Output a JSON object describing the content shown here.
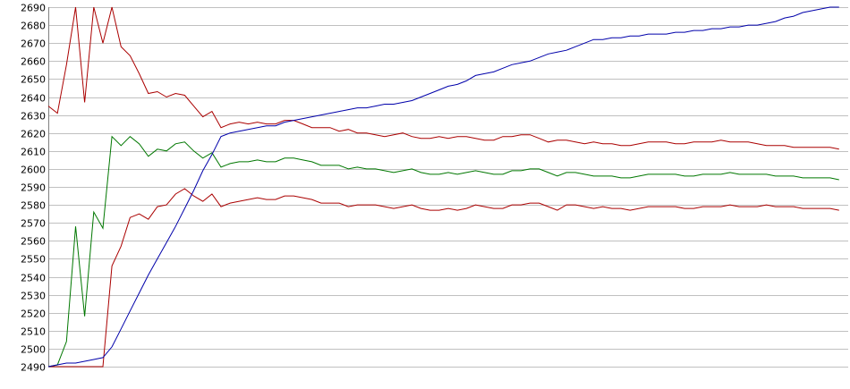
{
  "chart_data": {
    "type": "line",
    "title": "",
    "xlabel": "",
    "ylabel": "",
    "ylim": [
      2490,
      2690
    ],
    "xlim": [
      0,
      88
    ],
    "y_ticks": [
      2490,
      2500,
      2510,
      2520,
      2530,
      2540,
      2550,
      2560,
      2570,
      2580,
      2590,
      2600,
      2610,
      2620,
      2630,
      2640,
      2650,
      2660,
      2670,
      2680,
      2690
    ],
    "y_tick_labels": [
      "2490",
      "2500",
      "2510",
      "2520",
      "2530",
      "2540",
      "2550",
      "2560",
      "2570",
      "2580",
      "2590",
      "2600",
      "2610",
      "2620",
      "2630",
      "2640",
      "2650",
      "2660",
      "2670",
      "2680",
      "2690"
    ],
    "grid": true,
    "legend": "none",
    "colors": {
      "upper": "#aa0000",
      "middle": "#007700",
      "lower": "#aa0000",
      "trend": "#0000aa",
      "grid": "#c0c0c0",
      "axis": "#808080"
    },
    "series": [
      {
        "color": "#aa0000",
        "values": [
          2635,
          2631,
          2658,
          2690,
          2637,
          2690,
          2670,
          2690,
          2668,
          2663,
          2653,
          2642,
          2643,
          2640,
          2642,
          2641,
          2635,
          2629,
          2632,
          2623,
          2625,
          2626,
          2625,
          2626,
          2625,
          2625,
          2627,
          2627,
          2625,
          2623,
          2623,
          2623,
          2621,
          2622,
          2620,
          2620,
          2619,
          2618,
          2619,
          2620,
          2618,
          2617,
          2617,
          2618,
          2617,
          2618,
          2618,
          2617,
          2616,
          2616,
          2618,
          2618,
          2619,
          2619,
          2617,
          2615,
          2616,
          2616,
          2615,
          2614,
          2615,
          2614,
          2614,
          2613,
          2613,
          2614,
          2615,
          2615,
          2615,
          2614,
          2614,
          2615,
          2615,
          2615,
          2616,
          2615,
          2615,
          2615,
          2614,
          2613,
          2613,
          2613,
          2612,
          2612,
          2612,
          2612,
          2612,
          2611
        ]
      },
      {
        "color": "#007700",
        "values": [
          2490,
          2491,
          2504,
          2568,
          2518,
          2576,
          2567,
          2618,
          2613,
          2618,
          2614,
          2607,
          2611,
          2610,
          2614,
          2615,
          2610,
          2606,
          2609,
          2601,
          2603,
          2604,
          2604,
          2605,
          2604,
          2604,
          2606,
          2606,
          2605,
          2604,
          2602,
          2602,
          2602,
          2600,
          2601,
          2600,
          2600,
          2599,
          2598,
          2599,
          2600,
          2598,
          2597,
          2597,
          2598,
          2597,
          2598,
          2599,
          2598,
          2597,
          2597,
          2599,
          2599,
          2600,
          2600,
          2598,
          2596,
          2598,
          2598,
          2597,
          2596,
          2596,
          2596,
          2595,
          2595,
          2596,
          2597,
          2597,
          2597,
          2597,
          2596,
          2596,
          2597,
          2597,
          2597,
          2598,
          2597,
          2597,
          2597,
          2597,
          2596,
          2596,
          2596,
          2595,
          2595,
          2595,
          2595,
          2594
        ]
      },
      {
        "color": "#aa0000",
        "values": [
          2490,
          2490,
          2490,
          2490,
          2490,
          2490,
          2490,
          2546,
          2557,
          2573,
          2575,
          2572,
          2579,
          2580,
          2586,
          2589,
          2585,
          2582,
          2586,
          2579,
          2581,
          2582,
          2583,
          2584,
          2583,
          2583,
          2585,
          2585,
          2584,
          2583,
          2581,
          2581,
          2581,
          2579,
          2580,
          2580,
          2580,
          2579,
          2578,
          2579,
          2580,
          2578,
          2577,
          2577,
          2578,
          2577,
          2578,
          2580,
          2579,
          2578,
          2578,
          2580,
          2580,
          2581,
          2581,
          2579,
          2577,
          2580,
          2580,
          2579,
          2578,
          2579,
          2578,
          2578,
          2577,
          2578,
          2579,
          2579,
          2579,
          2579,
          2578,
          2578,
          2579,
          2579,
          2579,
          2580,
          2579,
          2579,
          2579,
          2580,
          2579,
          2579,
          2579,
          2578,
          2578,
          2578,
          2578,
          2577
        ]
      },
      {
        "color": "#0000aa",
        "values": [
          2490,
          2491,
          2492,
          2492,
          2493,
          2494,
          2495,
          2501,
          2511,
          2521,
          2531,
          2541,
          2550,
          2559,
          2568,
          2578,
          2588,
          2599,
          2608,
          2618,
          2620,
          2621,
          2622,
          2623,
          2624,
          2624,
          2626,
          2627,
          2628,
          2629,
          2630,
          2631,
          2632,
          2633,
          2634,
          2634,
          2635,
          2636,
          2636,
          2637,
          2638,
          2640,
          2642,
          2644,
          2646,
          2647,
          2649,
          2652,
          2653,
          2654,
          2656,
          2658,
          2659,
          2660,
          2662,
          2664,
          2665,
          2666,
          2668,
          2670,
          2672,
          2672,
          2673,
          2673,
          2674,
          2674,
          2675,
          2675,
          2675,
          2676,
          2676,
          2677,
          2677,
          2678,
          2678,
          2679,
          2679,
          2680,
          2680,
          2681,
          2682,
          2684,
          2685,
          2687,
          2688,
          2689,
          2690,
          2690
        ]
      }
    ]
  }
}
